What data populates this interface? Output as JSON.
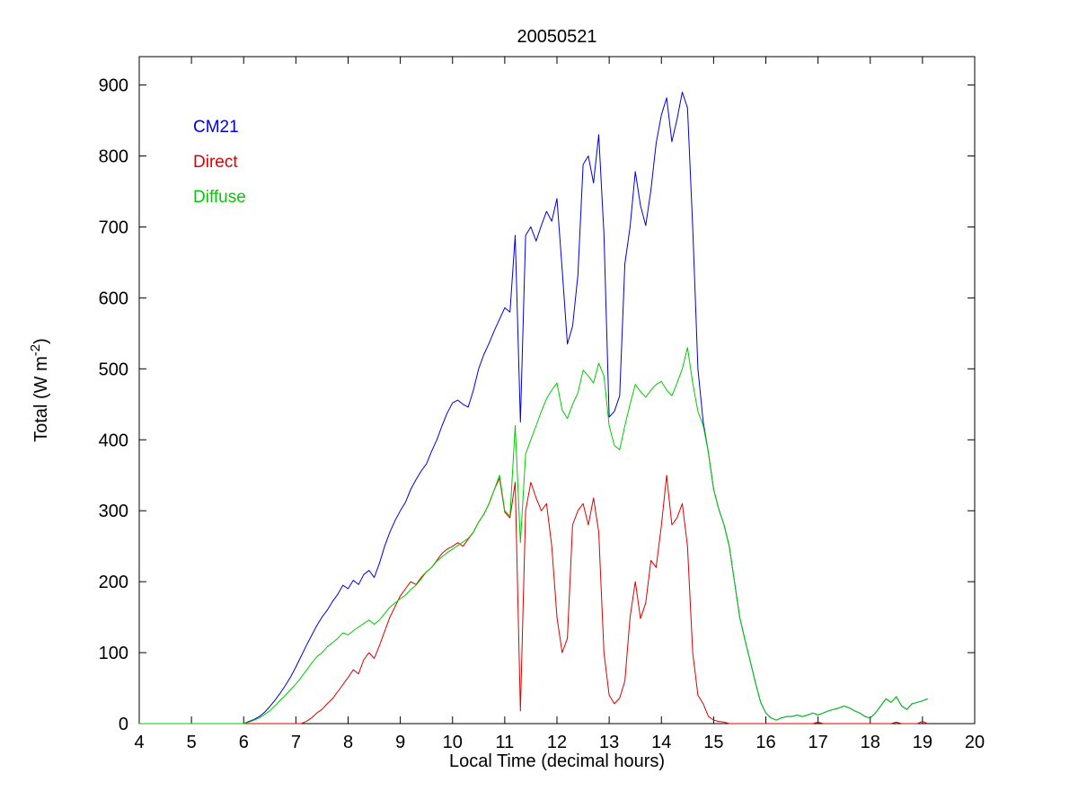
{
  "chart_data": {
    "type": "line",
    "title": "20050521",
    "xlabel": "Local Time (decimal hours)",
    "ylabel": "Total (W m-2)",
    "ylabel_parts": {
      "pre": "Total (W m",
      "sup": "-2",
      "post": ")"
    },
    "xlim": [
      4,
      20
    ],
    "ylim": [
      0,
      940
    ],
    "xticks": [
      4,
      5,
      6,
      7,
      8,
      9,
      10,
      11,
      12,
      13,
      14,
      15,
      16,
      17,
      18,
      19,
      20
    ],
    "yticks": [
      0,
      100,
      200,
      300,
      400,
      500,
      600,
      700,
      800,
      900
    ],
    "grid": false,
    "legend_position": "upper-left-inside",
    "x": [
      4.0,
      4.1,
      4.2,
      4.3,
      4.4,
      4.5,
      4.6,
      4.7,
      4.8,
      4.9,
      5.0,
      5.1,
      5.2,
      5.3,
      5.4,
      5.5,
      5.6,
      5.7,
      5.8,
      5.9,
      6.0,
      6.1,
      6.2,
      6.3,
      6.4,
      6.5,
      6.6,
      6.7,
      6.8,
      6.9,
      7.0,
      7.1,
      7.2,
      7.3,
      7.4,
      7.5,
      7.6,
      7.7,
      7.8,
      7.9,
      8.0,
      8.1,
      8.2,
      8.3,
      8.4,
      8.5,
      8.6,
      8.7,
      8.8,
      8.9,
      9.0,
      9.1,
      9.2,
      9.3,
      9.4,
      9.5,
      9.6,
      9.7,
      9.8,
      9.9,
      10.0,
      10.1,
      10.2,
      10.3,
      10.4,
      10.5,
      10.6,
      10.7,
      10.8,
      10.9,
      11.0,
      11.1,
      11.2,
      11.3,
      11.4,
      11.5,
      11.6,
      11.7,
      11.8,
      11.9,
      12.0,
      12.1,
      12.2,
      12.3,
      12.4,
      12.5,
      12.6,
      12.7,
      12.8,
      12.9,
      13.0,
      13.1,
      13.2,
      13.3,
      13.4,
      13.5,
      13.6,
      13.7,
      13.8,
      13.9,
      14.0,
      14.1,
      14.2,
      14.3,
      14.4,
      14.5,
      14.6,
      14.7,
      14.8,
      14.9,
      15.0,
      15.1,
      15.2,
      15.3,
      15.4,
      15.5,
      15.6,
      15.7,
      15.8,
      15.9,
      16.0,
      16.1,
      16.2,
      16.3,
      16.4,
      16.5,
      16.6,
      16.7,
      16.8,
      16.9,
      17.0,
      17.1,
      17.2,
      17.3,
      17.4,
      17.5,
      17.6,
      17.7,
      17.8,
      17.9,
      18.0,
      18.1,
      18.2,
      18.3,
      18.4,
      18.5,
      18.6,
      18.7,
      18.8,
      18.9,
      19.0,
      19.1
    ],
    "series": [
      {
        "name": "CM21",
        "color": "#0000dd",
        "values": [
          0,
          0,
          0,
          0,
          0,
          0,
          0,
          0,
          0,
          0,
          0,
          0,
          0,
          0,
          0,
          0,
          0,
          0,
          0,
          0,
          0,
          3,
          6,
          10,
          16,
          24,
          33,
          43,
          54,
          66,
          80,
          95,
          110,
          124,
          138,
          150,
          160,
          172,
          182,
          195,
          190,
          202,
          196,
          210,
          216,
          206,
          226,
          250,
          270,
          286,
          300,
          312,
          330,
          344,
          356,
          366,
          384,
          400,
          420,
          438,
          452,
          456,
          450,
          446,
          470,
          500,
          520,
          536,
          554,
          570,
          586,
          580,
          688,
          425,
          688,
          700,
          680,
          702,
          722,
          708,
          740,
          640,
          535,
          560,
          632,
          788,
          800,
          762,
          830,
          690,
          432,
          440,
          462,
          648,
          700,
          778,
          730,
          702,
          752,
          818,
          858,
          882,
          820,
          852,
          890,
          868,
          700,
          500,
          425,
          382,
          330,
          302,
          280,
          250,
          200,
          150,
          118,
          88,
          58,
          30,
          15,
          8,
          5,
          8,
          10,
          10,
          12,
          10,
          12,
          15,
          12,
          15,
          18,
          20,
          22,
          25,
          22,
          18,
          15,
          10,
          8,
          15,
          25,
          35,
          30,
          38,
          25,
          20,
          28,
          30,
          32,
          35
        ]
      },
      {
        "name": "Direct",
        "color": "#dd0000",
        "values": [
          0,
          0,
          0,
          0,
          0,
          0,
          0,
          0,
          0,
          0,
          0,
          0,
          0,
          0,
          0,
          0,
          0,
          0,
          0,
          0,
          0,
          0,
          0,
          0,
          0,
          0,
          0,
          0,
          0,
          0,
          0,
          0,
          3,
          8,
          15,
          20,
          28,
          35,
          45,
          55,
          65,
          76,
          70,
          90,
          100,
          92,
          110,
          130,
          150,
          165,
          180,
          190,
          200,
          196,
          206,
          214,
          220,
          230,
          240,
          246,
          250,
          255,
          250,
          260,
          270,
          284,
          295,
          310,
          330,
          346,
          298,
          290,
          340,
          18,
          300,
          340,
          318,
          300,
          310,
          250,
          150,
          100,
          120,
          280,
          300,
          310,
          280,
          318,
          270,
          100,
          40,
          28,
          36,
          60,
          150,
          200,
          148,
          170,
          230,
          220,
          280,
          350,
          280,
          290,
          310,
          250,
          100,
          40,
          28,
          10,
          5,
          3,
          2,
          0,
          0,
          0,
          0,
          0,
          0,
          0,
          0,
          0,
          0,
          0,
          0,
          0,
          0,
          0,
          0,
          0,
          2,
          0,
          0,
          0,
          0,
          0,
          0,
          0,
          0,
          0,
          0,
          0,
          0,
          0,
          0,
          2,
          0,
          0,
          0,
          0,
          3,
          0
        ]
      },
      {
        "name": "Diffuse",
        "color": "#00cc00",
        "values": [
          0,
          0,
          0,
          0,
          0,
          0,
          0,
          0,
          0,
          0,
          0,
          0,
          0,
          0,
          0,
          0,
          0,
          0,
          0,
          0,
          0,
          2,
          5,
          8,
          13,
          18,
          25,
          33,
          40,
          48,
          56,
          65,
          75,
          85,
          94,
          100,
          108,
          114,
          120,
          128,
          125,
          131,
          136,
          141,
          146,
          140,
          146,
          155,
          164,
          170,
          176,
          181,
          189,
          195,
          204,
          214,
          220,
          229,
          235,
          241,
          246,
          251,
          256,
          261,
          270,
          284,
          295,
          310,
          330,
          350,
          300,
          292,
          420,
          255,
          380,
          400,
          420,
          440,
          458,
          470,
          480,
          442,
          430,
          450,
          466,
          498,
          490,
          480,
          508,
          490,
          420,
          392,
          386,
          420,
          450,
          478,
          468,
          460,
          470,
          478,
          482,
          470,
          462,
          480,
          500,
          530,
          480,
          440,
          420,
          382,
          330,
          302,
          280,
          250,
          200,
          150,
          118,
          88,
          58,
          30,
          15,
          8,
          5,
          8,
          10,
          10,
          12,
          10,
          12,
          15,
          12,
          15,
          18,
          20,
          22,
          25,
          22,
          18,
          15,
          10,
          8,
          15,
          25,
          35,
          30,
          38,
          25,
          20,
          28,
          30,
          32,
          35
        ]
      }
    ]
  }
}
